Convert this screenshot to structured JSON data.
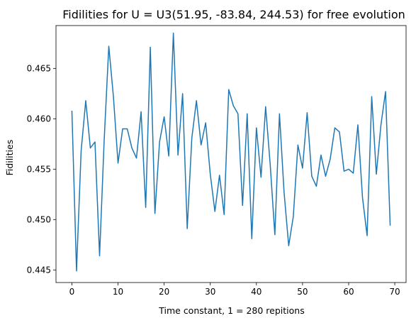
{
  "chart_data": {
    "type": "line",
    "title": "Fidilities for U = U3(51.95, -83.84, 244.53) for free evolution",
    "xlabel": "Time constant, 1 = 280 repitions",
    "ylabel": "Fidilities",
    "xlim": [
      -3.45,
      72.45
    ],
    "ylim": [
      0.44375,
      0.46925
    ],
    "x_ticks": [
      0,
      10,
      20,
      30,
      40,
      50,
      60,
      70
    ],
    "x_tick_labels": [
      "0",
      "10",
      "20",
      "30",
      "40",
      "50",
      "60",
      "70"
    ],
    "y_ticks": [
      0.445,
      0.45,
      0.455,
      0.46,
      0.465
    ],
    "y_tick_labels": [
      "0.445",
      "0.450",
      "0.455",
      "0.460",
      "0.465"
    ],
    "grid": false,
    "legend": "none",
    "series": [
      {
        "color": "#1f77b4",
        "x": [
          0,
          1,
          2,
          3,
          4,
          5,
          6,
          7,
          8,
          9,
          10,
          11,
          12,
          13,
          14,
          15,
          16,
          17,
          18,
          19,
          20,
          21,
          22,
          23,
          24,
          25,
          26,
          27,
          28,
          29,
          30,
          31,
          32,
          33,
          34,
          35,
          36,
          37,
          38,
          39,
          40,
          41,
          42,
          43,
          44,
          45,
          46,
          47,
          48,
          49,
          50,
          51,
          52,
          53,
          54,
          55,
          56,
          57,
          58,
          59,
          60,
          61,
          62,
          63,
          64,
          65,
          66,
          67,
          68,
          69
        ],
        "values": [
          0.4608,
          0.4449,
          0.4568,
          0.4618,
          0.4571,
          0.4577,
          0.4464,
          0.4579,
          0.4672,
          0.4622,
          0.4556,
          0.459,
          0.459,
          0.4571,
          0.4561,
          0.4607,
          0.4512,
          0.4671,
          0.4506,
          0.4577,
          0.4602,
          0.4563,
          0.4685,
          0.4564,
          0.4625,
          0.4491,
          0.4581,
          0.4618,
          0.4574,
          0.4596,
          0.4545,
          0.4508,
          0.4544,
          0.4505,
          0.4629,
          0.4613,
          0.4605,
          0.4514,
          0.4605,
          0.4481,
          0.4591,
          0.4542,
          0.4612,
          0.4554,
          0.4485,
          0.4605,
          0.4527,
          0.4474,
          0.4503,
          0.4574,
          0.4551,
          0.4606,
          0.4543,
          0.4533,
          0.4564,
          0.4543,
          0.456,
          0.4591,
          0.4587,
          0.4548,
          0.455,
          0.4546,
          0.4594,
          0.4522,
          0.4484,
          0.4622,
          0.4545,
          0.4594,
          0.4627,
          0.4494
        ]
      }
    ]
  }
}
